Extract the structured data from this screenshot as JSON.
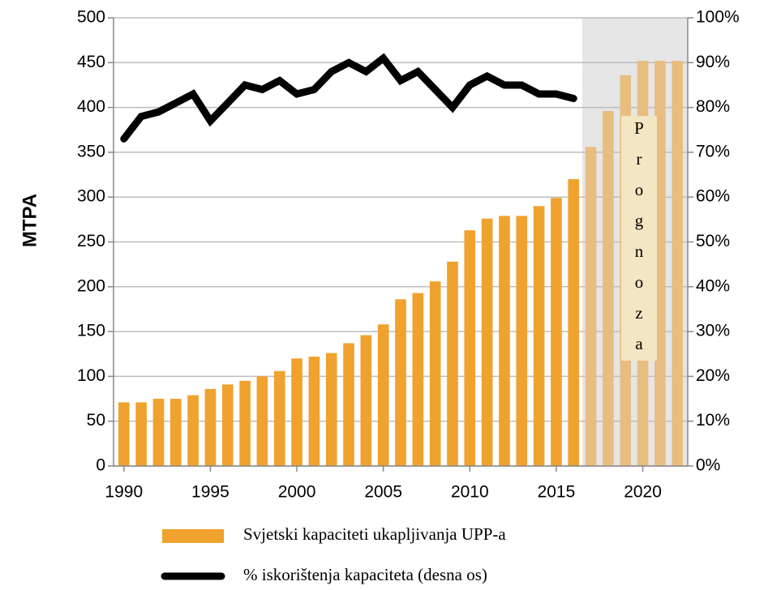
{
  "chart_data": {
    "type": "bar_line",
    "x": [
      1990,
      1991,
      1992,
      1993,
      1994,
      1995,
      1996,
      1997,
      1998,
      1999,
      2000,
      2001,
      2002,
      2003,
      2004,
      2005,
      2006,
      2007,
      2008,
      2009,
      2010,
      2011,
      2012,
      2013,
      2014,
      2015,
      2016,
      2017,
      2018,
      2019,
      2020,
      2021,
      2022
    ],
    "series": [
      {
        "name": "Svjetski kapaciteti ukapljivanja UPP-a",
        "type": "bar",
        "color": "#f0a22e",
        "values": [
          71,
          71,
          75,
          75,
          79,
          86,
          91,
          95,
          100,
          106,
          120,
          122,
          126,
          137,
          146,
          158,
          186,
          193,
          206,
          228,
          263,
          276,
          279,
          279,
          290,
          299,
          320,
          356,
          396,
          436,
          452,
          452,
          452
        ]
      },
      {
        "name": "% iskorištenja kapaciteta (desna os)",
        "type": "line",
        "axis": "y2",
        "color": "#000000",
        "values": [
          73,
          78,
          79,
          81,
          83,
          77,
          81,
          85,
          84,
          86,
          83,
          84,
          88,
          90,
          88,
          91,
          86,
          88,
          84,
          80,
          85,
          87,
          85,
          85,
          83,
          83,
          82,
          null,
          null,
          null,
          null,
          null,
          null
        ]
      }
    ],
    "forecast": {
      "label": "Prognoza",
      "years": [
        2017,
        2022
      ],
      "color": "#e8be80",
      "shade": "#e6e6e6"
    },
    "ylabel": "MTPA",
    "xlim": [
      1989.4,
      2022.6
    ],
    "xticks": [
      1990,
      1995,
      2000,
      2005,
      2010,
      2015,
      2020
    ],
    "ylim": [
      0,
      500
    ],
    "yticks": [
      0,
      50,
      100,
      150,
      200,
      250,
      300,
      350,
      400,
      450,
      500
    ],
    "y2lim": [
      0,
      100
    ],
    "y2ticks": [
      {
        "value": 0,
        "label": "0%"
      },
      {
        "value": 10,
        "label": "10%"
      },
      {
        "value": 20,
        "label": "20%"
      },
      {
        "value": 30,
        "label": "30%"
      },
      {
        "value": 40,
        "label": "40%"
      },
      {
        "value": 50,
        "label": "50%"
      },
      {
        "value": 60,
        "label": "60%"
      },
      {
        "value": 70,
        "label": "70%"
      },
      {
        "value": 80,
        "label": "80%"
      },
      {
        "value": 90,
        "label": "90%"
      },
      {
        "value": 100,
        "label": "100%"
      }
    ],
    "grid": true
  }
}
